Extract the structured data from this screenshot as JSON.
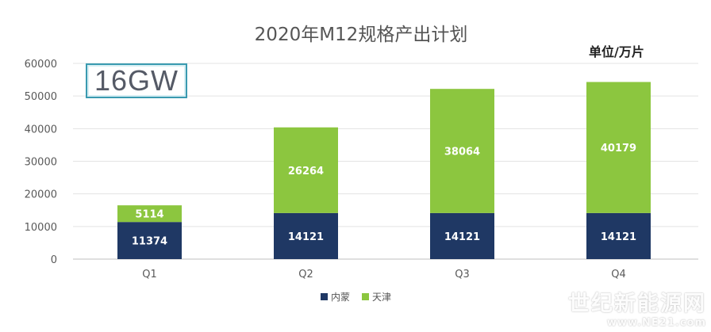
{
  "badge": "16GW",
  "unit_label": "单位/万片",
  "watermark": {
    "name": "世纪新能源网",
    "url": "www.NE21.com"
  },
  "chart_data": {
    "type": "bar",
    "stacked": true,
    "title": "2020年M12规格产出计划",
    "categories": [
      "Q1",
      "Q2",
      "Q3",
      "Q4"
    ],
    "series": [
      {
        "name": "内蒙",
        "color": "#1f3864",
        "values": [
          11374,
          14121,
          14121,
          14121
        ]
      },
      {
        "name": "天津",
        "color": "#8cc63f",
        "values": [
          5114,
          26264,
          38064,
          40179
        ]
      }
    ],
    "ylim": [
      0,
      60000
    ],
    "yticks": [
      0,
      10000,
      20000,
      30000,
      40000,
      50000,
      60000
    ],
    "grid": true,
    "legend_position": "bottom"
  }
}
